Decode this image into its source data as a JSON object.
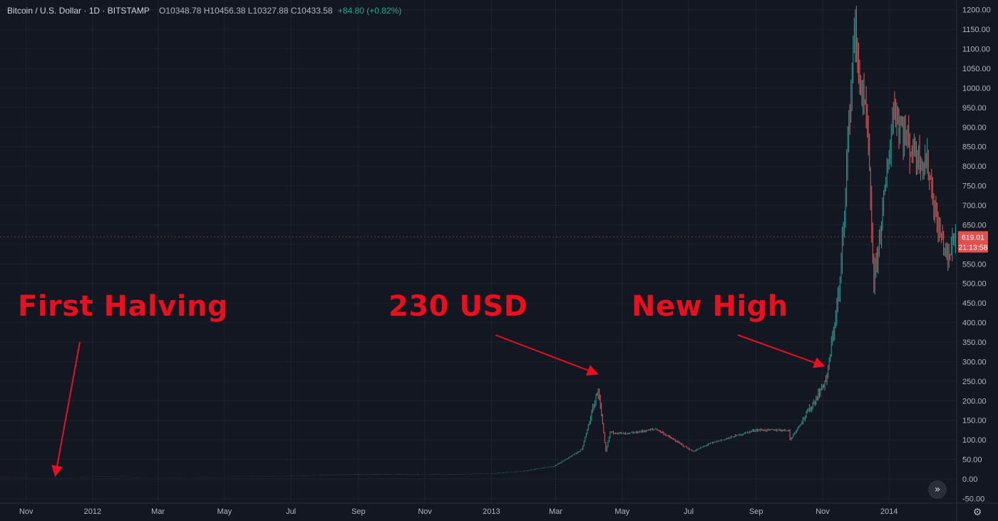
{
  "header": {
    "symbol": "Bitcoin / U.S. Dollar",
    "interval": "1D",
    "exchange": "BITSTAMP",
    "ohlc": "O10348.78 H10456.38 L10327.88 C10433.58",
    "change": "+84.80 (+0.82%)"
  },
  "annotations": {
    "first_halving": "First Halving",
    "price_230": "230 USD",
    "new_high": "New High"
  },
  "price_badge": {
    "price": "619.01",
    "countdown": "21:13:58"
  },
  "colors": {
    "background": "#131722",
    "up": "#2f8f88",
    "down": "#c85a5a",
    "annotation": "#e8101f",
    "badge": "#e0504f"
  },
  "icons": {
    "scroll": "double-chevron-right-icon",
    "settings": "gear-icon"
  },
  "chart_data": {
    "type": "line",
    "title": "",
    "xlabel": "",
    "ylabel": "",
    "x_ticks": [
      "Nov",
      "2012",
      "Mar",
      "May",
      "Jul",
      "Sep",
      "Nov",
      "2013",
      "Mar",
      "May",
      "Jul",
      "Sep",
      "Nov",
      "2014"
    ],
    "y_ticks": [
      "1200.00",
      "1150.00",
      "1100.00",
      "1050.00",
      "1000.00",
      "950.00",
      "900.00",
      "850.00",
      "800.00",
      "750.00",
      "700.00",
      "650.00",
      "600.00",
      "550.00",
      "500.00",
      "450.00",
      "400.00",
      "350.00",
      "300.00",
      "250.00",
      "200.00",
      "150.00",
      "100.00",
      "50.00",
      "0.00",
      "-50.00"
    ],
    "ylim": [
      -50,
      1200
    ],
    "xlim": [
      "2011-10-08",
      "2014-03-04"
    ],
    "grid": true,
    "series": [
      {
        "values": [
          [
            "2011-10-08",
            5
          ],
          [
            "2011-11-18",
            2.5
          ],
          [
            "2011-12-18",
            4.2
          ],
          [
            "2012-01-12",
            7
          ],
          [
            "2012-02-15",
            4.5
          ],
          [
            "2012-04-15",
            5
          ],
          [
            "2012-06-15",
            6.5
          ],
          [
            "2012-08-15",
            11
          ],
          [
            "2012-09-15",
            12
          ],
          [
            "2012-10-30",
            11
          ],
          [
            "2012-12-31",
            13.5
          ],
          [
            "2013-01-31",
            20
          ],
          [
            "2013-02-28",
            33
          ],
          [
            "2013-03-25",
            75
          ],
          [
            "2013-04-09",
            230
          ],
          [
            "2013-04-16",
            70
          ],
          [
            "2013-04-20",
            120
          ],
          [
            "2013-05-05",
            115
          ],
          [
            "2013-06-01",
            128
          ],
          [
            "2013-07-05",
            70
          ],
          [
            "2013-07-20",
            90
          ],
          [
            "2013-08-31",
            125
          ],
          [
            "2013-10-01",
            125
          ],
          [
            "2013-10-02",
            100
          ],
          [
            "2013-10-25",
            200
          ],
          [
            "2013-11-05",
            260
          ],
          [
            "2013-11-17",
            500
          ],
          [
            "2013-11-30",
            1150
          ],
          [
            "2013-12-06",
            1000
          ],
          [
            "2013-12-12",
            900
          ],
          [
            "2013-12-18",
            500
          ],
          [
            "2013-12-31",
            800
          ],
          [
            "2014-01-05",
            950
          ],
          [
            "2014-01-20",
            850
          ],
          [
            "2014-02-06",
            800
          ],
          [
            "2014-02-14",
            650
          ],
          [
            "2014-02-25",
            560
          ],
          [
            "2014-03-01",
            619
          ]
        ]
      }
    ],
    "annotations": [
      {
        "label": "First Halving",
        "x": "2011-11-28",
        "y": 12
      },
      {
        "label": "230 USD",
        "x": "2013-04-07",
        "y": 270
      },
      {
        "label": "New High",
        "x": "2013-11-01",
        "y": 290
      }
    ]
  }
}
